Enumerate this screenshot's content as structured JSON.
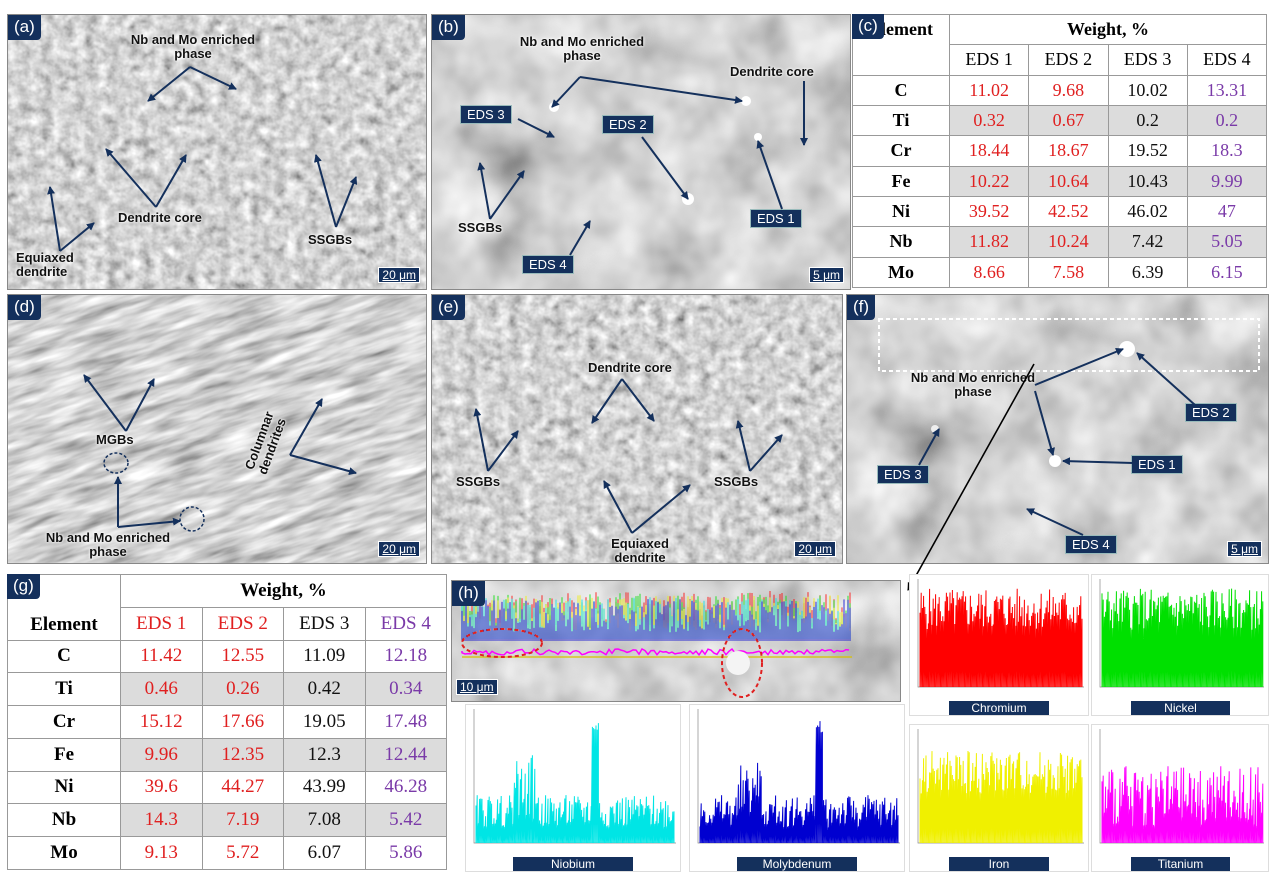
{
  "panel_a": {
    "label": "(a)",
    "annotations": [
      "Nb and Mo enriched phase",
      "Dendrite core",
      "Equiaxed dendrite",
      "SSGBs"
    ],
    "scale": "20 μm"
  },
  "panel_b": {
    "label": "(b)",
    "annotations": [
      "Nb and Mo enriched phase",
      "Dendrite core",
      "SSGBs"
    ],
    "eds_labels": [
      "EDS 3",
      "EDS 2",
      "EDS 1",
      "EDS 4"
    ],
    "scale": "5 μm"
  },
  "table_c": {
    "label": "(c)",
    "header_element": "Element",
    "header_weight": "Weight, %",
    "columns": [
      "EDS 1",
      "EDS 2",
      "EDS 3",
      "EDS 4"
    ],
    "rows": [
      {
        "el": "C",
        "v": [
          "11.02",
          "9.68",
          "10.02",
          "13.31"
        ]
      },
      {
        "el": "Ti",
        "v": [
          "0.32",
          "0.67",
          "0.2",
          "0.2"
        ]
      },
      {
        "el": "Cr",
        "v": [
          "18.44",
          "18.67",
          "19.52",
          "18.3"
        ]
      },
      {
        "el": "Fe",
        "v": [
          "10.22",
          "10.64",
          "10.43",
          "9.99"
        ]
      },
      {
        "el": "Ni",
        "v": [
          "39.52",
          "42.52",
          "46.02",
          "47"
        ]
      },
      {
        "el": "Nb",
        "v": [
          "11.82",
          "10.24",
          "7.42",
          "5.05"
        ]
      },
      {
        "el": "Mo",
        "v": [
          "8.66",
          "7.58",
          "6.39",
          "6.15"
        ]
      }
    ]
  },
  "panel_d": {
    "label": "(d)",
    "annotations": [
      "MGBs",
      "Columnar dendrites",
      "Nb and Mo enriched phase"
    ],
    "scale": "20 μm"
  },
  "panel_e": {
    "label": "(e)",
    "annotations": [
      "Dendrite core",
      "SSGBs",
      "SSGBs",
      "Equiaxed dendrite"
    ],
    "scale": "20 μm"
  },
  "panel_f": {
    "label": "(f)",
    "annotations": [
      "Nb and Mo enriched phase"
    ],
    "eds_labels": [
      "EDS 2",
      "EDS 1",
      "EDS 3",
      "EDS 4"
    ],
    "scale": "5 μm"
  },
  "table_g": {
    "label": "(g)",
    "header_element": "Element",
    "header_weight": "Weight, %",
    "columns": [
      "EDS 1",
      "EDS 2",
      "EDS 3",
      "EDS 4"
    ],
    "rows": [
      {
        "el": "C",
        "v": [
          "11.42",
          "12.55",
          "11.09",
          "12.18"
        ]
      },
      {
        "el": "Ti",
        "v": [
          "0.46",
          "0.26",
          "0.42",
          "0.34"
        ]
      },
      {
        "el": "Cr",
        "v": [
          "15.12",
          "17.66",
          "19.05",
          "17.48"
        ]
      },
      {
        "el": "Fe",
        "v": [
          "9.96",
          "12.35",
          "12.3",
          "12.44"
        ]
      },
      {
        "el": "Ni",
        "v": [
          "39.6",
          "44.27",
          "43.99",
          "46.28"
        ]
      },
      {
        "el": "Nb",
        "v": [
          "14.3",
          "7.19",
          "7.08",
          "5.42"
        ]
      },
      {
        "el": "Mo",
        "v": [
          "9.13",
          "5.72",
          "6.07",
          "5.86"
        ]
      }
    ]
  },
  "panel_h": {
    "label": "(h)",
    "scale": "10 μm",
    "spectra": [
      {
        "name": "Chromium",
        "color": "#ff0000"
      },
      {
        "name": "Nickel",
        "color": "#00e000"
      },
      {
        "name": "Niobium",
        "color": "#00e5e5"
      },
      {
        "name": "Molybdenum",
        "color": "#0000d0"
      },
      {
        "name": "Iron",
        "color": "#f0f000"
      },
      {
        "name": "Titanium",
        "color": "#ff00ff"
      }
    ]
  },
  "colors": {
    "label_bg": "#14305c",
    "eds_red": "#e02020",
    "eds_purple": "#7a3aa8"
  }
}
